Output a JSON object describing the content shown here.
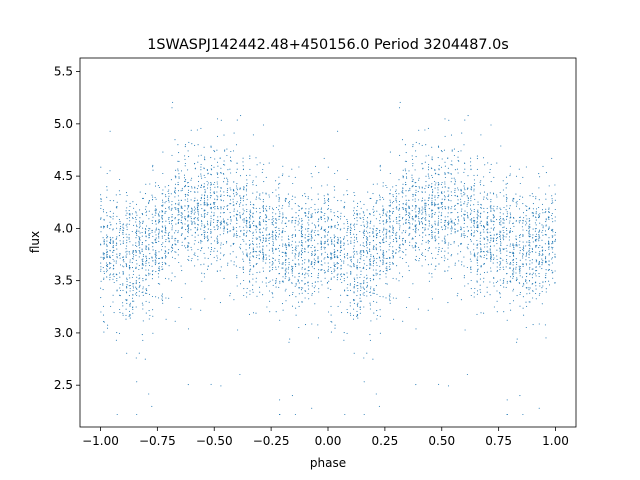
{
  "chart_data": {
    "type": "scatter",
    "title": "1SWASPJ142442.48+450156.0 Period 3204487.0s",
    "xlabel": "phase",
    "ylabel": "flux",
    "xlim": [
      -1.09,
      1.09
    ],
    "ylim": [
      2.1,
      5.63
    ],
    "x_ticks": [
      -1.0,
      -0.75,
      -0.5,
      -0.25,
      0.0,
      0.25,
      0.5,
      0.75,
      1.0
    ],
    "x_tick_labels": [
      "−1.00",
      "−0.75",
      "−0.50",
      "−0.25",
      "0.00",
      "0.25",
      "0.50",
      "0.75",
      "1.00"
    ],
    "y_ticks": [
      2.5,
      3.0,
      3.5,
      4.0,
      4.5,
      5.0,
      5.5
    ],
    "y_tick_labels": [
      "2.5",
      "3.0",
      "3.5",
      "4.0",
      "4.5",
      "5.0",
      "5.5"
    ],
    "grid": false,
    "legend": "none",
    "point_color": "#1f77b4",
    "series": [
      {
        "phase_flux_profile": {
          "phase": [
            0.0,
            0.05,
            0.1,
            0.15,
            0.2,
            0.25,
            0.3,
            0.35,
            0.4,
            0.45,
            0.5,
            0.55,
            0.6,
            0.65,
            0.7,
            0.75,
            0.8,
            0.85,
            0.9,
            0.95,
            1.0
          ],
          "flux": [
            3.85,
            3.8,
            3.72,
            3.68,
            3.75,
            3.88,
            4.0,
            4.12,
            4.18,
            4.2,
            4.18,
            4.15,
            4.1,
            4.02,
            3.95,
            3.9,
            3.85,
            3.78,
            3.82,
            3.88,
            3.85
          ],
          "scatter": [
            0.28,
            0.3,
            0.3,
            0.3,
            0.3,
            0.3,
            0.28,
            0.28,
            0.28,
            0.28,
            0.3,
            0.3,
            0.3,
            0.3,
            0.3,
            0.3,
            0.3,
            0.3,
            0.28,
            0.28,
            0.28
          ]
        }
      }
    ]
  }
}
